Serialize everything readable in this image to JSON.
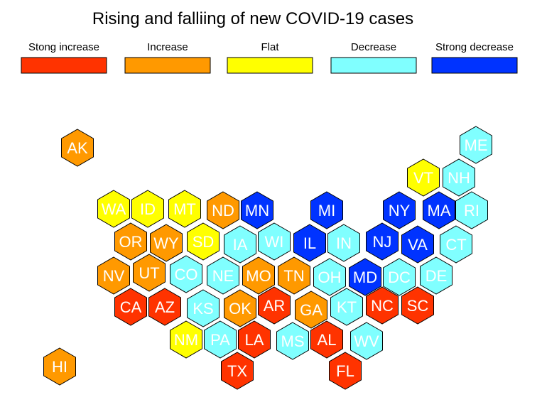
{
  "chart_data": {
    "type": "hex-tile-map",
    "title": "Rising and falliing of new COVID-19 cases",
    "legend": [
      {
        "key": "strong_increase",
        "label": "Stong increase",
        "color": "#ff3300"
      },
      {
        "key": "increase",
        "label": "Increase",
        "color": "#ff9900"
      },
      {
        "key": "flat",
        "label": "Flat",
        "color": "#ffff00"
      },
      {
        "key": "decrease",
        "label": "Decrease",
        "color": "#80ffff"
      },
      {
        "key": "strong_decrease",
        "label": "Strong decrease",
        "color": "#0033ff"
      }
    ],
    "states": [
      {
        "abbr": "AK",
        "category": "increase"
      },
      {
        "abbr": "ME",
        "category": "decrease"
      },
      {
        "abbr": "VT",
        "category": "flat"
      },
      {
        "abbr": "NH",
        "category": "decrease"
      },
      {
        "abbr": "WA",
        "category": "flat"
      },
      {
        "abbr": "ID",
        "category": "flat"
      },
      {
        "abbr": "MT",
        "category": "flat"
      },
      {
        "abbr": "ND",
        "category": "increase"
      },
      {
        "abbr": "MN",
        "category": "strong_decrease"
      },
      {
        "abbr": "MI",
        "category": "strong_decrease"
      },
      {
        "abbr": "NY",
        "category": "strong_decrease"
      },
      {
        "abbr": "MA",
        "category": "strong_decrease"
      },
      {
        "abbr": "RI",
        "category": "decrease"
      },
      {
        "abbr": "OR",
        "category": "increase"
      },
      {
        "abbr": "WY",
        "category": "increase"
      },
      {
        "abbr": "SD",
        "category": "flat"
      },
      {
        "abbr": "IA",
        "category": "decrease"
      },
      {
        "abbr": "WI",
        "category": "decrease"
      },
      {
        "abbr": "IL",
        "category": "strong_decrease"
      },
      {
        "abbr": "IN",
        "category": "decrease"
      },
      {
        "abbr": "NJ",
        "category": "strong_decrease"
      },
      {
        "abbr": "VA",
        "category": "strong_decrease"
      },
      {
        "abbr": "CT",
        "category": "decrease"
      },
      {
        "abbr": "NV",
        "category": "increase"
      },
      {
        "abbr": "UT",
        "category": "increase"
      },
      {
        "abbr": "CO",
        "category": "decrease"
      },
      {
        "abbr": "NE",
        "category": "decrease"
      },
      {
        "abbr": "MO",
        "category": "increase"
      },
      {
        "abbr": "TN",
        "category": "increase"
      },
      {
        "abbr": "OH",
        "category": "decrease"
      },
      {
        "abbr": "MD",
        "category": "strong_decrease"
      },
      {
        "abbr": "DC",
        "category": "decrease"
      },
      {
        "abbr": "DE",
        "category": "decrease"
      },
      {
        "abbr": "CA",
        "category": "strong_increase"
      },
      {
        "abbr": "AZ",
        "category": "strong_increase"
      },
      {
        "abbr": "KS",
        "category": "decrease"
      },
      {
        "abbr": "OK",
        "category": "increase"
      },
      {
        "abbr": "AR",
        "category": "strong_increase"
      },
      {
        "abbr": "GA",
        "category": "increase"
      },
      {
        "abbr": "KT",
        "category": "decrease"
      },
      {
        "abbr": "NC",
        "category": "strong_increase"
      },
      {
        "abbr": "SC",
        "category": "strong_increase"
      },
      {
        "abbr": "NM",
        "category": "flat"
      },
      {
        "abbr": "PA",
        "category": "decrease"
      },
      {
        "abbr": "LA",
        "category": "strong_increase"
      },
      {
        "abbr": "MS",
        "category": "decrease"
      },
      {
        "abbr": "AL",
        "category": "strong_increase"
      },
      {
        "abbr": "WV",
        "category": "decrease"
      },
      {
        "abbr": "HI",
        "category": "increase"
      },
      {
        "abbr": "TX",
        "category": "strong_increase"
      },
      {
        "abbr": "FL",
        "category": "strong_increase"
      }
    ]
  }
}
